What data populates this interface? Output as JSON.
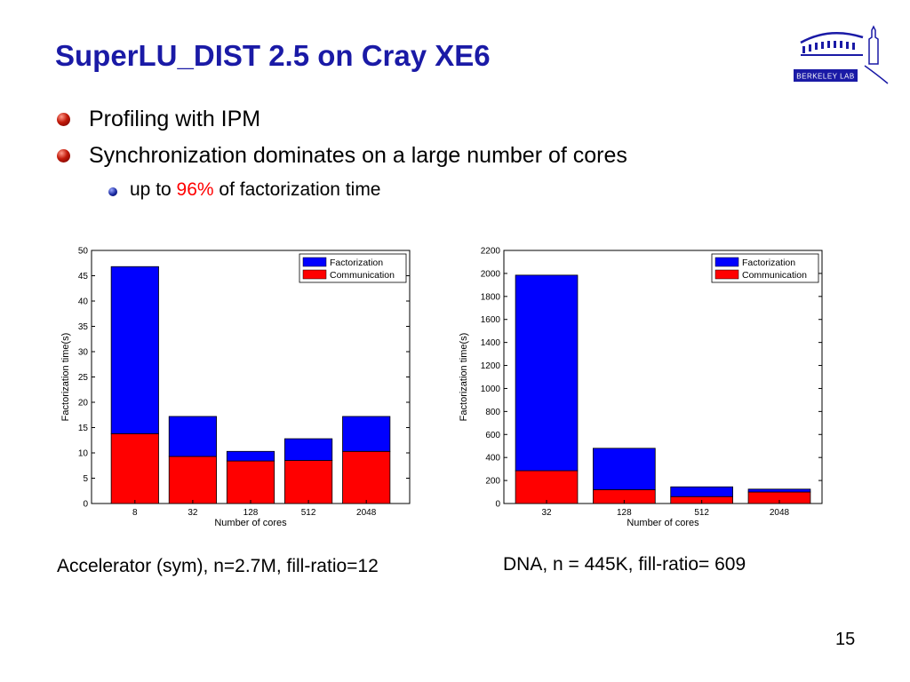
{
  "slide": {
    "title": "SuperLU_DIST 2.5 on Cray XE6",
    "page_number": "15",
    "logo_text": "Berkeley Lab",
    "bullets": [
      {
        "text": "Profiling with IPM"
      },
      {
        "text": "Synchronization dominates on a large number of cores"
      }
    ],
    "sub_bullet": {
      "prefix": "up to ",
      "highlight": "96%",
      "suffix": " of factorization time"
    },
    "captions": [
      "Accelerator (sym), n=2.7M, fill-ratio=12",
      "DNA, n = 445K, fill-ratio= 609"
    ]
  },
  "colors": {
    "factorization": "#0000ff",
    "communication": "#ff0000",
    "title": "#1a1aa6",
    "highlight": "#ff0000"
  },
  "chart_data": [
    {
      "type": "bar",
      "stacked": true,
      "categories": [
        "8",
        "32",
        "128",
        "512",
        "2048"
      ],
      "series": [
        {
          "name": "Communication",
          "values": [
            13.8,
            9.3,
            8.4,
            8.5,
            10.3
          ]
        },
        {
          "name": "Factorization",
          "values": [
            33.0,
            7.9,
            1.9,
            4.3,
            6.9
          ]
        }
      ],
      "xlabel": "Number of cores",
      "ylabel": "Factorization time(s)",
      "ylim": [
        0,
        50
      ],
      "yticks": [
        0,
        5,
        10,
        15,
        20,
        25,
        30,
        35,
        40,
        45,
        50
      ],
      "legend": "top-right"
    },
    {
      "type": "bar",
      "stacked": true,
      "categories": [
        "32",
        "128",
        "512",
        "2048"
      ],
      "series": [
        {
          "name": "Communication",
          "values": [
            285,
            120,
            60,
            100
          ]
        },
        {
          "name": "Factorization",
          "values": [
            1700,
            360,
            85,
            25
          ]
        }
      ],
      "xlabel": "Number of cores",
      "ylabel": "Factorization time(s)",
      "ylim": [
        0,
        2200
      ],
      "yticks": [
        0,
        200,
        400,
        600,
        800,
        1000,
        1200,
        1400,
        1600,
        1800,
        2000,
        2200
      ],
      "legend": "top-right"
    }
  ]
}
